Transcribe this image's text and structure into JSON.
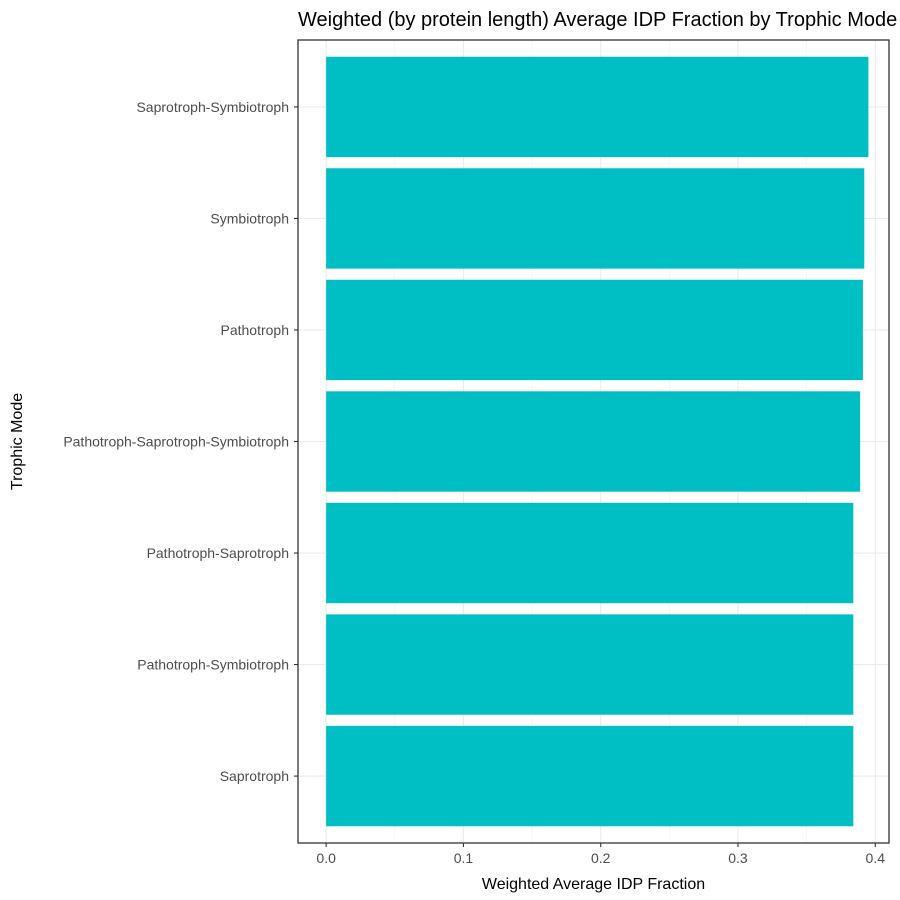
{
  "chart_data": {
    "type": "bar",
    "orientation": "horizontal",
    "title": "Weighted (by protein length) Average IDP Fraction by Trophic Mode",
    "xlabel": "Weighted Average IDP Fraction",
    "ylabel": "Trophic Mode",
    "categories": [
      "Saprotroph-Symbiotroph",
      "Symbiotroph",
      "Pathotroph",
      "Pathotroph-Saprotroph-Symbiotroph",
      "Pathotroph-Saprotroph",
      "Pathotroph-Symbiotroph",
      "Saprotroph"
    ],
    "values": [
      0.395,
      0.392,
      0.391,
      0.389,
      0.384,
      0.384,
      0.384
    ],
    "xlim": [
      0,
      0.41
    ],
    "xticks": [
      0.0,
      0.1,
      0.2,
      0.3,
      0.4
    ],
    "xtick_labels": [
      "0.0",
      "0.1",
      "0.2",
      "0.3",
      "0.4"
    ],
    "bar_color": "#00BFC4",
    "grid": true,
    "legend": "none"
  }
}
